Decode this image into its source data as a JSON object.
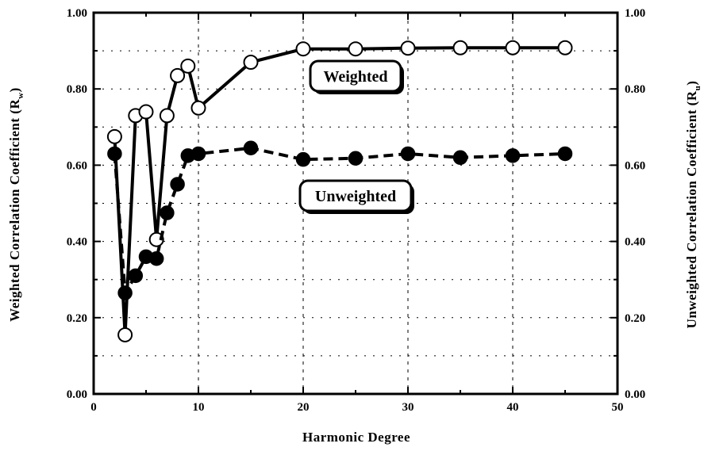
{
  "chart_data": {
    "type": "line",
    "xlabel": "Harmonic Degree",
    "ylabel_left": "Weighted Correlation Coefficient (R",
    "ylabel_left_sub": "w",
    "ylabel_right": "Unweighted Correlation Coefficient (R",
    "ylabel_right_sub": "u",
    "xlim": [
      0,
      50
    ],
    "ylim": [
      0,
      1
    ],
    "x_ticks": [
      0,
      10,
      20,
      30,
      40,
      50
    ],
    "y_ticks": [
      0,
      0.2,
      0.4,
      0.6,
      0.8,
      1.0
    ],
    "x_tick_labels": [
      "0",
      "10",
      "20",
      "30",
      "40",
      "50"
    ],
    "y_tick_labels": [
      "0.00",
      "0.20",
      "0.40",
      "0.60",
      "0.80",
      "1.00"
    ],
    "grid": true,
    "series": [
      {
        "name": "Weighted",
        "line": "solid",
        "marker": "open-circle",
        "x": [
          2,
          3,
          4,
          5,
          6,
          7,
          8,
          9,
          10,
          15,
          20,
          25,
          30,
          35,
          40,
          45
        ],
        "y": [
          0.675,
          0.155,
          0.73,
          0.74,
          0.405,
          0.73,
          0.835,
          0.86,
          0.75,
          0.87,
          0.905,
          0.905,
          0.907,
          0.908,
          0.908,
          0.908
        ]
      },
      {
        "name": "Unweighted",
        "line": "dashed",
        "marker": "filled-circle",
        "x": [
          2,
          3,
          4,
          5,
          6,
          7,
          8,
          9,
          10,
          15,
          20,
          25,
          30,
          35,
          40,
          45
        ],
        "y": [
          0.63,
          0.265,
          0.31,
          0.36,
          0.355,
          0.475,
          0.55,
          0.625,
          0.63,
          0.645,
          0.615,
          0.618,
          0.63,
          0.62,
          0.625,
          0.63
        ]
      }
    ]
  }
}
